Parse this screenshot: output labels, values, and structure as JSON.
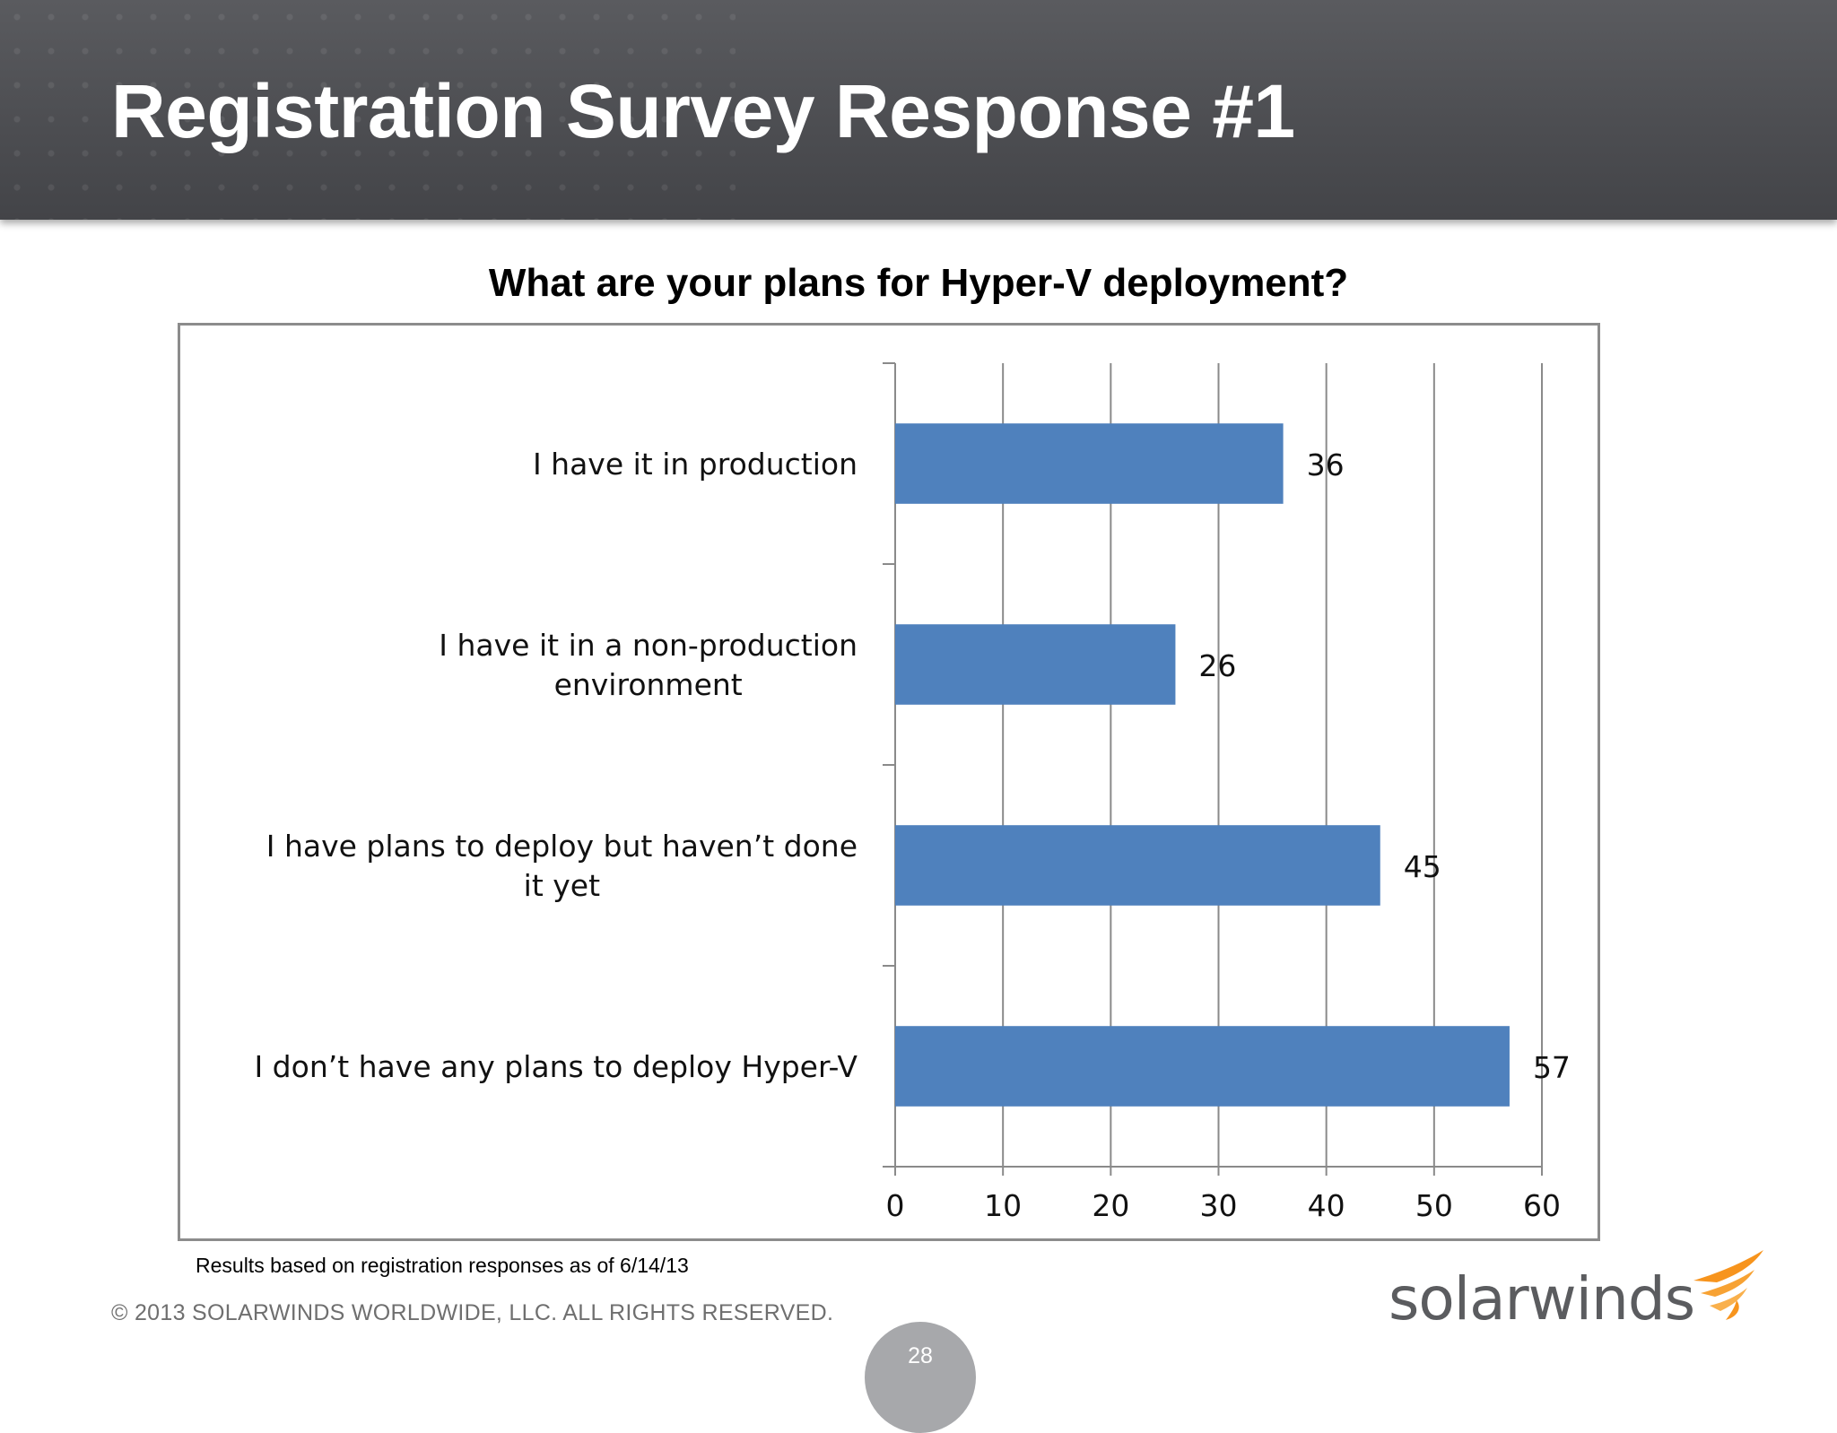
{
  "header": {
    "title": "Registration Survey Response #1"
  },
  "question": "What are your plans for Hyper-V deployment?",
  "chart_data": {
    "type": "bar",
    "orientation": "horizontal",
    "categories": [
      [
        "I have it in production"
      ],
      [
        "I have it in a non-production",
        "environment"
      ],
      [
        "I have plans to deploy but haven’t done",
        "it yet"
      ],
      [
        "I don’t have any plans to deploy Hyper-V"
      ]
    ],
    "values": [
      36,
      26,
      45,
      57
    ],
    "xticks": [
      "0",
      "10",
      "20",
      "30",
      "40",
      "50",
      "60"
    ],
    "xlim": [
      0,
      60
    ],
    "grid": "vertical",
    "bar_color": "#4f81bd",
    "data_labels": [
      "36",
      "26",
      "45",
      "57"
    ]
  },
  "note": "Results based on registration responses as of 6/14/13",
  "footer": {
    "copyright": "© 2013 SOLARWINDS WORLDWIDE, LLC.  ALL RIGHTS RESERVED.",
    "page_number": "28",
    "logo_text": "solarwinds",
    "logo_icon": "solarwinds-flare-icon",
    "logo_accent": "#f7941d"
  }
}
